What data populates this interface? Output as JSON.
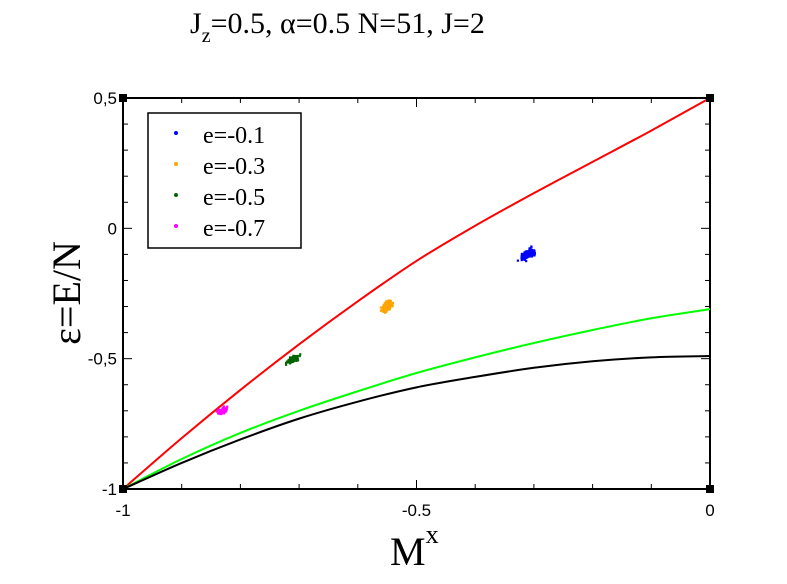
{
  "chart_data": {
    "type": "scatter",
    "title": {
      "j": "J",
      "z": "z",
      "after_z": "=0.5, ",
      "alpha": "α",
      "rest": "=0.5 N=51, J=2"
    },
    "xlabel": {
      "m": "M",
      "sup": "x"
    },
    "ylabel": "ε=E/N",
    "xlim": [
      -1,
      0
    ],
    "ylim": [
      -1,
      0.5
    ],
    "x_ticks": [
      {
        "value": -1,
        "label": "-1"
      },
      {
        "value": -0.5,
        "label": "-0.5"
      },
      {
        "value": 0,
        "label": "0"
      }
    ],
    "y_ticks": [
      {
        "value": -1,
        "label": "-1"
      },
      {
        "value": -0.5,
        "label": "-0,5"
      },
      {
        "value": 0,
        "label": "0"
      },
      {
        "value": 0.5,
        "label": "0,5"
      }
    ],
    "legend_position": "top-left",
    "series": [
      {
        "name": "e=-0.1",
        "color": "#0000ff",
        "center": [
          -0.31,
          -0.1
        ],
        "spread": [
          0.012,
          0.022
        ],
        "count": 180
      },
      {
        "name": "e=-0.3",
        "color": "#ffa500",
        "center": [
          -0.55,
          -0.3
        ],
        "spread": [
          0.01,
          0.02
        ],
        "count": 130
      },
      {
        "name": "e=-0.5",
        "color": "#006400",
        "center": [
          -0.71,
          -0.5
        ],
        "spread": [
          0.01,
          0.014
        ],
        "count": 110
      },
      {
        "name": "e=-0.7",
        "color": "#ff00ff",
        "center": [
          -0.83,
          -0.7
        ],
        "spread": [
          0.009,
          0.012
        ],
        "count": 90
      }
    ],
    "curves": [
      {
        "color": "#ff0000",
        "points": [
          [
            -1,
            -1
          ],
          [
            -0.9,
            -0.805
          ],
          [
            -0.8,
            -0.62
          ],
          [
            -0.7,
            -0.445
          ],
          [
            -0.6,
            -0.28
          ],
          [
            -0.5,
            -0.125
          ],
          [
            -0.4,
            0.01
          ],
          [
            -0.3,
            0.135
          ],
          [
            -0.2,
            0.255
          ],
          [
            -0.1,
            0.375
          ],
          [
            0,
            0.5
          ]
        ]
      },
      {
        "color": "#00ff00",
        "points": [
          [
            -1,
            -1
          ],
          [
            -0.9,
            -0.885
          ],
          [
            -0.8,
            -0.785
          ],
          [
            -0.7,
            -0.7
          ],
          [
            -0.6,
            -0.625
          ],
          [
            -0.5,
            -0.555
          ],
          [
            -0.4,
            -0.495
          ],
          [
            -0.3,
            -0.44
          ],
          [
            -0.2,
            -0.39
          ],
          [
            -0.1,
            -0.345
          ],
          [
            0,
            -0.31
          ]
        ]
      },
      {
        "color": "#000000",
        "points": [
          [
            -1,
            -1
          ],
          [
            -0.9,
            -0.9
          ],
          [
            -0.8,
            -0.81
          ],
          [
            -0.7,
            -0.73
          ],
          [
            -0.6,
            -0.665
          ],
          [
            -0.5,
            -0.61
          ],
          [
            -0.4,
            -0.57
          ],
          [
            -0.3,
            -0.535
          ],
          [
            -0.2,
            -0.51
          ],
          [
            -0.1,
            -0.495
          ],
          [
            0,
            -0.49
          ]
        ]
      }
    ]
  }
}
